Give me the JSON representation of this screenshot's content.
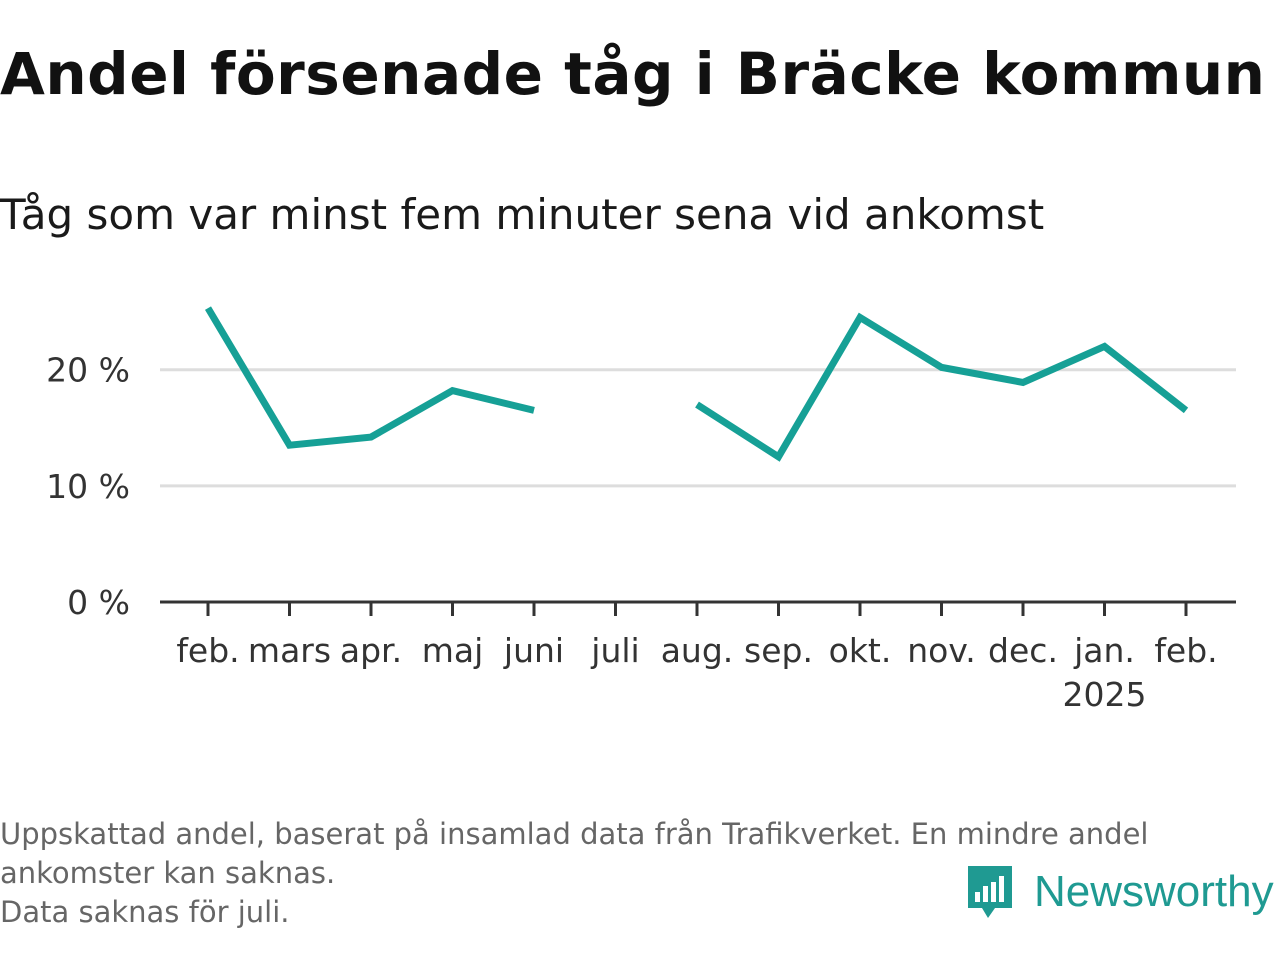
{
  "title": "Andel försenade tåg i Bräcke kommun",
  "subtitle": "Tåg som var minst fem minuter sena vid ankomst",
  "footer": {
    "note_line1": "Uppskattad andel, baserat på insamlad data från Trafikverket. En mindre andel",
    "note_line2": "ankomster kan saknas.",
    "note_line3": "Data saknas för juli."
  },
  "brand": {
    "name": "Newsworthy",
    "icon": "newsworthy-logo-icon"
  },
  "colors": {
    "line": "#16a096",
    "grid": "#dddddd",
    "axis": "#333333",
    "brand": "#1f9a92"
  },
  "chart_data": {
    "type": "line",
    "categories": [
      "feb.",
      "mars",
      "apr.",
      "maj",
      "juni",
      "juli",
      "aug.",
      "sep.",
      "okt.",
      "nov.",
      "dec.",
      "jan.",
      "feb."
    ],
    "year_label": {
      "index": 11,
      "text": "2025"
    },
    "series": [
      {
        "values": [
          25.3,
          13.5,
          14.2,
          18.2,
          16.5,
          null,
          17.0,
          12.5,
          24.5,
          20.2,
          18.9,
          22.0,
          16.5
        ]
      }
    ],
    "yticks": [
      {
        "value": 0,
        "label": "0 %"
      },
      {
        "value": 10,
        "label": "10 %"
      },
      {
        "value": 20,
        "label": "20 %"
      }
    ],
    "ylim": [
      0,
      26
    ],
    "grid": true,
    "xlabel": "",
    "ylabel": ""
  }
}
